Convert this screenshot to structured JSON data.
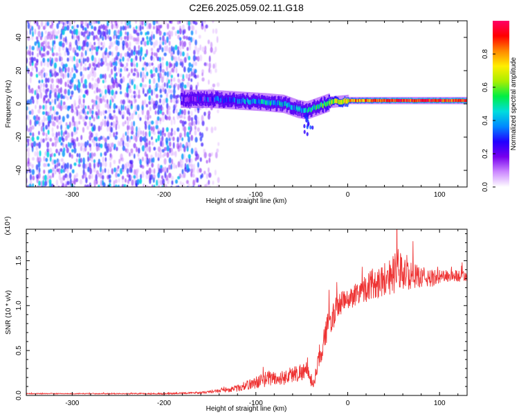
{
  "title": "C2E6.2025.059.02.11.G18",
  "chart_data": [
    {
      "type": "heatmap",
      "xlabel": "Height of straight line (km)",
      "ylabel": "Frequency (Hz)",
      "xlim": [
        -350,
        130
      ],
      "ylim": [
        -50,
        50
      ],
      "x_ticks": [
        -300,
        -200,
        -100,
        0,
        100
      ],
      "y_ticks": [
        -40,
        -20,
        0,
        20,
        40
      ],
      "colorbar": {
        "label": "Normalized spectral amplitude",
        "range": [
          0.0,
          1.0
        ],
        "ticks": [
          0.0,
          0.2,
          0.4,
          0.6,
          0.8
        ],
        "tick_labels": [
          "0.0",
          "0.2",
          "0.4",
          "0.6",
          "0.8"
        ],
        "colormap_stops": [
          "#ffffff",
          "#cc88ff",
          "#7700ee",
          "#2200ff",
          "#0088ff",
          "#00dddd",
          "#00ee44",
          "#aaee00",
          "#ffee00",
          "#ff8800",
          "#ff0000",
          "#ff0066"
        ]
      },
      "regions": [
        {
          "kind": "noise_field",
          "x_range": [
            -350,
            -140
          ],
          "freq_range": [
            -50,
            50
          ],
          "amplitude": 0.15
        },
        {
          "kind": "signal_band",
          "center_freq_trace": [
            [
              -180,
              3
            ],
            [
              -150,
              3
            ],
            [
              -120,
              2
            ],
            [
              -90,
              1
            ],
            [
              -70,
              0
            ],
            [
              -55,
              -3
            ],
            [
              -45,
              -4
            ],
            [
              -35,
              -2
            ],
            [
              -20,
              1
            ],
            [
              0,
              2
            ],
            [
              50,
              2
            ],
            [
              130,
              2
            ]
          ],
          "amplitude_trace": [
            [
              -180,
              0.2
            ],
            [
              -130,
              0.3
            ],
            [
              -90,
              0.45
            ],
            [
              -60,
              0.35
            ],
            [
              -30,
              0.5
            ],
            [
              0,
              0.75
            ],
            [
              50,
              0.9
            ],
            [
              130,
              0.9
            ]
          ]
        }
      ]
    },
    {
      "type": "line",
      "xlabel": "Height of straight line (km)",
      "ylabel": "SNR (10 * v/v)",
      "y_multiplier_label": "(x10⁴)",
      "xlim": [
        -350,
        130
      ],
      "ylim": [
        0,
        1.85
      ],
      "x_ticks": [
        -300,
        -200,
        -100,
        0,
        100
      ],
      "y_ticks": [
        0.0,
        0.5,
        1.0,
        1.5
      ],
      "y_tick_labels": [
        "0.0",
        "0.5",
        "1.0",
        "1.5"
      ],
      "series": [
        {
          "color": "#ee3333",
          "x": [
            -350,
            -300,
            -250,
            -200,
            -160,
            -140,
            -120,
            -105,
            -95,
            -85,
            -75,
            -65,
            -55,
            -45,
            -38,
            -32,
            -28,
            -24,
            -20,
            -15,
            -10,
            -5,
            0,
            10,
            20,
            30,
            40,
            50,
            55,
            60,
            70,
            80,
            90,
            100,
            110,
            120,
            130
          ],
          "y": [
            0.02,
            0.02,
            0.02,
            0.02,
            0.03,
            0.05,
            0.08,
            0.13,
            0.16,
            0.2,
            0.18,
            0.22,
            0.25,
            0.28,
            0.12,
            0.35,
            0.55,
            0.7,
            0.82,
            0.9,
            1.0,
            1.05,
            1.05,
            1.15,
            1.2,
            1.25,
            1.3,
            1.35,
            1.4,
            1.35,
            1.33,
            1.32,
            1.3,
            1.32,
            1.33,
            1.33,
            1.32
          ],
          "noise": [
            0.005,
            0.005,
            0.005,
            0.008,
            0.01,
            0.02,
            0.04,
            0.06,
            0.08,
            0.09,
            0.08,
            0.09,
            0.1,
            0.1,
            0.05,
            0.12,
            0.15,
            0.15,
            0.15,
            0.15,
            0.15,
            0.12,
            0.12,
            0.14,
            0.16,
            0.18,
            0.2,
            0.22,
            0.25,
            0.2,
            0.14,
            0.12,
            0.1,
            0.08,
            0.07,
            0.07,
            0.06
          ]
        }
      ]
    }
  ]
}
